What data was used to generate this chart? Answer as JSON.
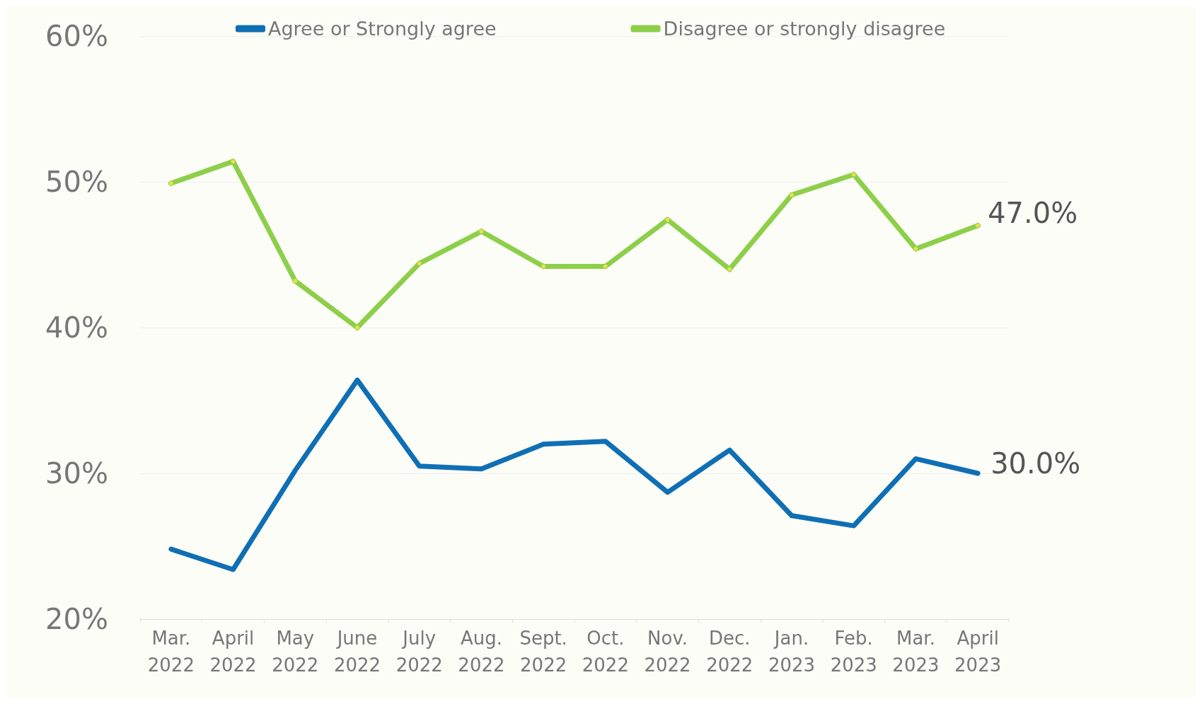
{
  "chart_data": {
    "type": "line",
    "categories": [
      "Mar.\n2022",
      "April\n2022",
      "May\n2022",
      "June\n2022",
      "July\n2022",
      "Aug.\n2022",
      "Sept.\n2022",
      "Oct.\n2022",
      "Nov.\n2022",
      "Dec.\n2022",
      "Jan.\n2023",
      "Feb.\n2023",
      "Mar.\n2023",
      "April\n2023"
    ],
    "series": [
      {
        "name": "Agree or Strongly agree",
        "color": "#0f6fb5",
        "marker": "none",
        "values": [
          24.8,
          23.4,
          30.2,
          36.4,
          30.5,
          30.3,
          32.0,
          32.2,
          28.7,
          31.6,
          27.1,
          26.4,
          31.0,
          30.0
        ],
        "value_labels": [
          null,
          null,
          null,
          null,
          null,
          null,
          null,
          null,
          null,
          null,
          null,
          null,
          null,
          "30.0%"
        ]
      },
      {
        "name": "Disagree or strongly disagree",
        "color": "#8dcf4a",
        "marker": "circle",
        "values": [
          49.9,
          51.4,
          43.2,
          40.0,
          44.4,
          46.6,
          44.2,
          44.2,
          47.4,
          44.0,
          49.1,
          50.5,
          45.4,
          47.0
        ],
        "value_labels": [
          null,
          null,
          null,
          null,
          null,
          null,
          null,
          null,
          null,
          null,
          null,
          null,
          null,
          "47.0%"
        ]
      }
    ],
    "ylim": [
      20,
      60
    ],
    "yticks": [
      {
        "value": 20,
        "label": "20%"
      },
      {
        "value": 30,
        "label": "30%"
      },
      {
        "value": 40,
        "label": "40%"
      },
      {
        "value": 50,
        "label": "50%"
      },
      {
        "value": 60,
        "label": "60%"
      }
    ],
    "grid": "y",
    "legend": "top",
    "line_style": "solid"
  }
}
